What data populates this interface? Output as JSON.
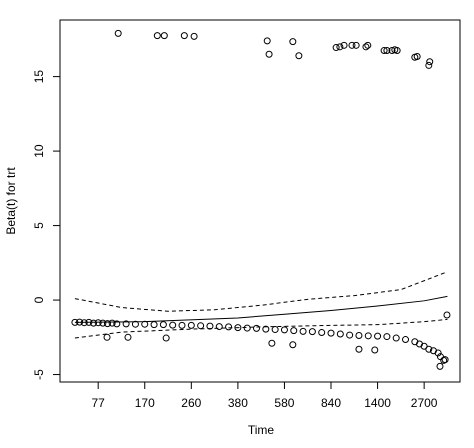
{
  "chart_data": {
    "type": "scatter",
    "x_label": "Time",
    "y_label": "Beta(t) for trt",
    "xlim": [
      0.018,
      0.877
    ],
    "ylim": [
      -5.5,
      18.8
    ],
    "xticks": [
      {
        "value": 0.1,
        "label": "77"
      },
      {
        "value": 0.2,
        "label": "170"
      },
      {
        "value": 0.3,
        "label": "260"
      },
      {
        "value": 0.4,
        "label": "380"
      },
      {
        "value": 0.5,
        "label": "580"
      },
      {
        "value": 0.6,
        "label": "840"
      },
      {
        "value": 0.7,
        "label": "1400"
      },
      {
        "value": 0.8,
        "label": "2700"
      }
    ],
    "yticks": [
      -5,
      0,
      5,
      10,
      15
    ],
    "series": [
      {
        "mode": "points",
        "color": "#000000",
        "x": [
          0.05,
          0.06,
          0.07,
          0.08,
          0.09,
          0.1,
          0.11,
          0.12,
          0.13,
          0.14,
          0.16,
          0.18,
          0.2,
          0.22,
          0.24,
          0.26,
          0.28,
          0.3,
          0.32,
          0.34,
          0.36,
          0.38,
          0.4,
          0.42,
          0.44,
          0.46,
          0.48,
          0.5,
          0.52,
          0.54,
          0.56,
          0.58,
          0.6,
          0.62,
          0.64,
          0.66,
          0.68,
          0.7,
          0.72,
          0.74,
          0.76,
          0.78,
          0.79,
          0.8,
          0.81,
          0.82,
          0.83,
          0.835,
          0.845,
          0.143,
          0.227,
          0.242,
          0.285,
          0.306,
          0.463,
          0.467,
          0.518,
          0.531,
          0.611,
          0.619,
          0.628,
          0.645,
          0.654,
          0.675,
          0.679,
          0.714,
          0.72,
          0.731,
          0.737,
          0.742,
          0.78,
          0.785,
          0.81,
          0.812,
          0.119,
          0.164,
          0.246,
          0.473,
          0.518,
          0.66,
          0.694,
          0.849,
          0.834,
          0.842
        ],
        "values": [
          -1.5,
          -1.48,
          -1.52,
          -1.5,
          -1.55,
          -1.52,
          -1.55,
          -1.58,
          -1.55,
          -1.6,
          -1.6,
          -1.62,
          -1.62,
          -1.65,
          -1.65,
          -1.68,
          -1.7,
          -1.7,
          -1.72,
          -1.75,
          -1.78,
          -1.8,
          -1.85,
          -1.88,
          -1.9,
          -1.95,
          -1.98,
          -2.0,
          -2.05,
          -2.1,
          -2.12,
          -2.18,
          -2.22,
          -2.28,
          -2.35,
          -2.38,
          -2.4,
          -2.42,
          -2.45,
          -2.55,
          -2.65,
          -2.8,
          -2.95,
          -3.1,
          -3.3,
          -3.4,
          -3.55,
          -3.8,
          -4.0,
          17.9,
          17.75,
          17.75,
          17.75,
          17.7,
          17.4,
          16.5,
          17.35,
          16.4,
          16.95,
          17.0,
          17.1,
          17.1,
          17.1,
          17.0,
          17.1,
          16.75,
          16.75,
          16.75,
          16.8,
          16.75,
          16.3,
          16.35,
          15.75,
          16.0,
          -2.5,
          -2.5,
          -2.55,
          -2.9,
          -3.0,
          -3.3,
          -3.35,
          -1.0,
          -4.45,
          -4.05
        ]
      },
      {
        "mode": "solid",
        "color": "#000000",
        "x": [
          0.05,
          0.2,
          0.4,
          0.5,
          0.6,
          0.7,
          0.8,
          0.85
        ],
        "values": [
          -1.5,
          -1.45,
          -1.2,
          -0.95,
          -0.7,
          -0.4,
          -0.05,
          0.25
        ]
      },
      {
        "mode": "dashed",
        "color": "#000000",
        "x": [
          0.05,
          0.15,
          0.25,
          0.35,
          0.45,
          0.55,
          0.65,
          0.75,
          0.85
        ],
        "values": [
          0.1,
          -0.5,
          -0.75,
          -0.65,
          -0.35,
          0.05,
          0.3,
          0.7,
          1.9
        ]
      },
      {
        "mode": "dashed",
        "color": "#000000",
        "x": [
          0.05,
          0.15,
          0.3,
          0.45,
          0.6,
          0.7,
          0.8,
          0.85
        ],
        "values": [
          -2.55,
          -2.15,
          -1.95,
          -1.8,
          -1.7,
          -1.65,
          -1.45,
          -1.3
        ]
      }
    ]
  }
}
